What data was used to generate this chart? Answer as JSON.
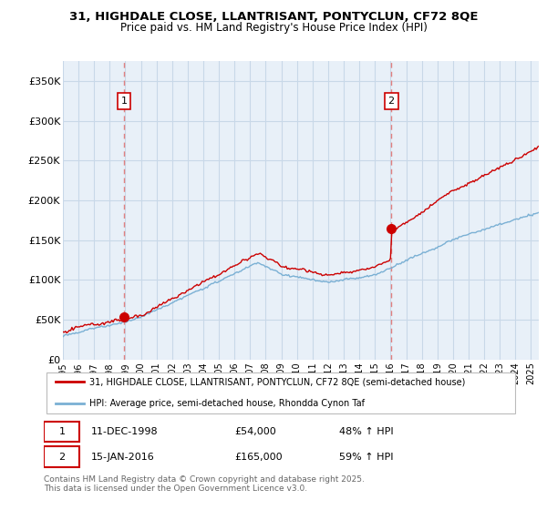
{
  "title_line1": "31, HIGHDALE CLOSE, LLANTRISANT, PONTYCLUN, CF72 8QE",
  "title_line2": "Price paid vs. HM Land Registry's House Price Index (HPI)",
  "legend_label_red": "31, HIGHDALE CLOSE, LLANTRISANT, PONTYCLUN, CF72 8QE (semi-detached house)",
  "legend_label_blue": "HPI: Average price, semi-detached house, Rhondda Cynon Taf",
  "footnote": "Contains HM Land Registry data © Crown copyright and database right 2025.\nThis data is licensed under the Open Government Licence v3.0.",
  "sale1_label": "1",
  "sale1_date": "11-DEC-1998",
  "sale1_price": "£54,000",
  "sale1_pct": "48% ↑ HPI",
  "sale2_label": "2",
  "sale2_date": "15-JAN-2016",
  "sale2_price": "£165,000",
  "sale2_pct": "59% ↑ HPI",
  "red_color": "#cc0000",
  "blue_color": "#7ab0d4",
  "vline_color": "#e08080",
  "grid_color": "#c8d8e8",
  "bg_color": "#e8f0f8",
  "ylim": [
    0,
    375000
  ],
  "yticks": [
    0,
    50000,
    100000,
    150000,
    200000,
    250000,
    300000,
    350000
  ],
  "ytick_labels": [
    "£0",
    "£50K",
    "£100K",
    "£150K",
    "£200K",
    "£250K",
    "£300K",
    "£350K"
  ],
  "sale1_year": 1998.92,
  "sale1_value": 54000,
  "sale2_year": 2016.04,
  "sale2_value": 165000,
  "xlim_start": 1995.0,
  "xlim_end": 2025.5
}
